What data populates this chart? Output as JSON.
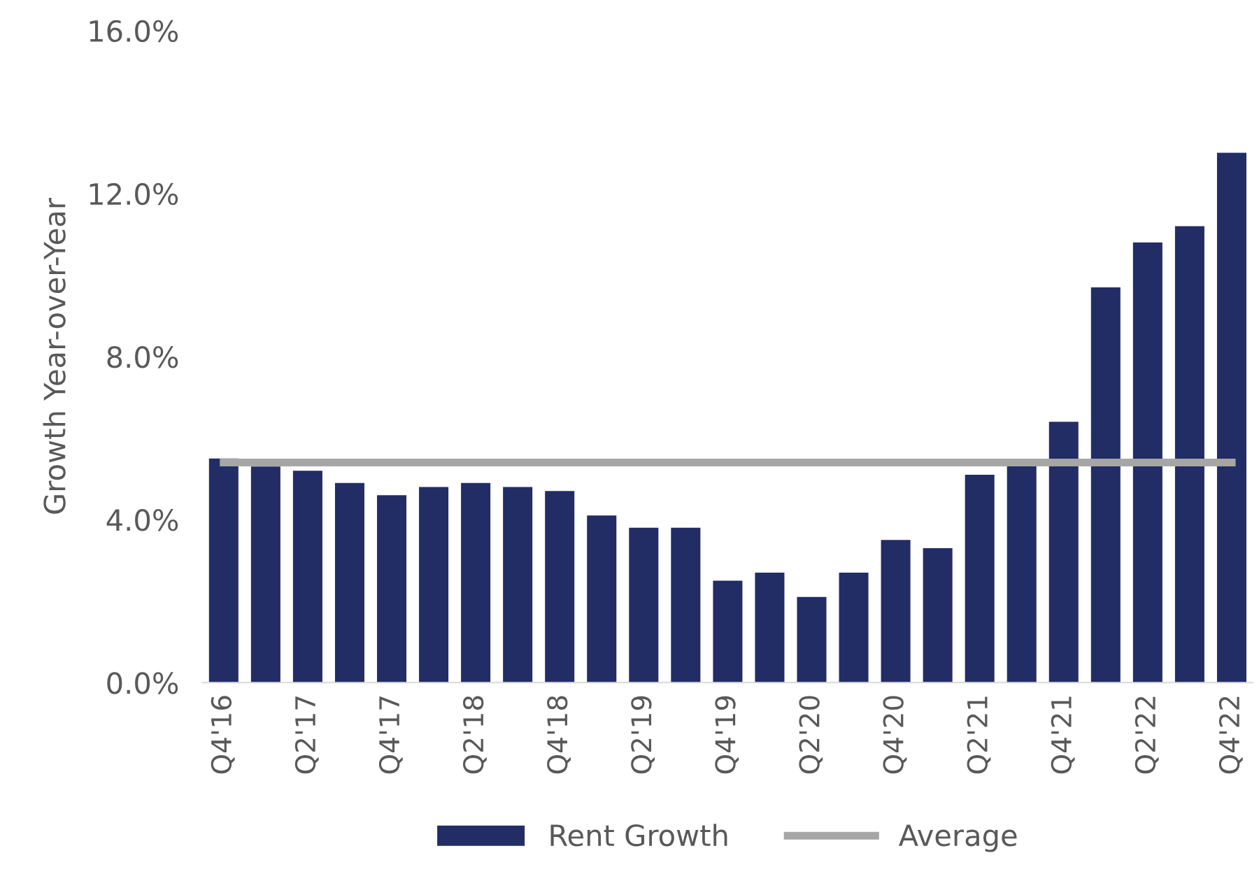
{
  "chart_data": {
    "type": "bar",
    "ylabel": "Growth Year-over-Year",
    "categories": [
      "Q4'16",
      null,
      "Q2'17",
      null,
      "Q4'17",
      null,
      "Q2'18",
      null,
      "Q4'18",
      null,
      "Q2'19",
      null,
      "Q4'19",
      null,
      "Q2'20",
      null,
      "Q4'20",
      null,
      "Q2'21",
      null,
      "Q4'21",
      null,
      "Q2'22",
      null,
      "Q4'22"
    ],
    "series": [
      {
        "name": "Rent Growth",
        "color": "#222d66",
        "values": [
          5.5,
          5.3,
          5.2,
          4.9,
          4.6,
          4.8,
          4.9,
          4.8,
          4.7,
          4.1,
          3.8,
          3.8,
          2.5,
          2.7,
          2.1,
          2.7,
          3.5,
          3.3,
          5.1,
          5.4,
          6.4,
          9.7,
          10.8,
          11.2,
          13.0
        ]
      },
      {
        "name": "Average",
        "type": "line",
        "color": "#a6a6a6",
        "values": [
          5.4,
          5.4,
          5.4,
          5.4,
          5.4,
          5.4,
          5.4,
          5.4,
          5.4,
          5.4,
          5.4,
          5.4,
          5.4,
          5.4,
          5.4,
          5.4,
          5.4,
          5.4,
          5.4,
          5.4,
          5.4,
          5.4,
          5.4,
          5.4,
          5.4
        ]
      }
    ],
    "ylim": [
      0,
      16
    ],
    "yticks": [
      {
        "value": 0,
        "label": "0.0%"
      },
      {
        "value": 4,
        "label": "4.0%"
      },
      {
        "value": 8,
        "label": "8.0%"
      },
      {
        "value": 12,
        "label": "12.0%"
      },
      {
        "value": 16,
        "label": "16.0%"
      }
    ],
    "grid": false,
    "legend": "bottom",
    "marker": "none",
    "line_style": "solid"
  }
}
